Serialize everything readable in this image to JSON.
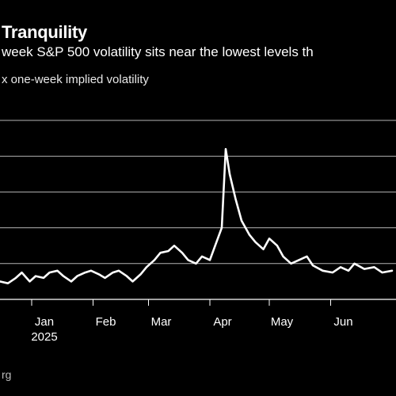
{
  "title": "Tranquility",
  "subtitle": "week S&P 500 volatility sits near the lowest levels th",
  "caption": "x one-week implied volatility",
  "source": "rg",
  "colors": {
    "background": "#000000",
    "line": "#ffffff",
    "grid": "#b4b4b4"
  },
  "chart_data": {
    "type": "line",
    "title": "Tranquility",
    "ylim": [
      10,
      60
    ],
    "grid": true,
    "x_ticks": [
      "Jan",
      "Feb",
      "Mar",
      "Apr",
      "May",
      "Jun"
    ],
    "x_tick_sublabels": [
      "2025",
      "",
      "",
      "",
      "",
      ""
    ],
    "x_range": [
      "2024-12-16",
      "2025-07-04"
    ],
    "series": [
      {
        "x": [
          "2024-12-16",
          "2024-12-20",
          "2024-12-24",
          "2024-12-27",
          "2024-12-31",
          "2025-01-03",
          "2025-01-07",
          "2025-01-10",
          "2025-01-14",
          "2025-01-17",
          "2025-01-21",
          "2025-01-24",
          "2025-01-28",
          "2025-01-31",
          "2025-02-04",
          "2025-02-07",
          "2025-02-11",
          "2025-02-14",
          "2025-02-18",
          "2025-02-21",
          "2025-02-25",
          "2025-02-28",
          "2025-03-04",
          "2025-03-07",
          "2025-03-11",
          "2025-03-14",
          "2025-03-18",
          "2025-03-21",
          "2025-03-25",
          "2025-03-28",
          "2025-04-01",
          "2025-04-03",
          "2025-04-07",
          "2025-04-09",
          "2025-04-11",
          "2025-04-14",
          "2025-04-17",
          "2025-04-21",
          "2025-04-24",
          "2025-04-28",
          "2025-05-01",
          "2025-05-05",
          "2025-05-08",
          "2025-05-12",
          "2025-05-16",
          "2025-05-20",
          "2025-05-23",
          "2025-05-28",
          "2025-06-02",
          "2025-06-06",
          "2025-06-10",
          "2025-06-13",
          "2025-06-18",
          "2025-06-23",
          "2025-06-27",
          "2025-07-02"
        ],
        "y": [
          15,
          14.5,
          16,
          17.5,
          15,
          16.5,
          16,
          17.5,
          18,
          16.5,
          15,
          16.5,
          17.5,
          18,
          17,
          16,
          17.5,
          18,
          16.5,
          15,
          17,
          19,
          21,
          23,
          23.5,
          25,
          23,
          21,
          20,
          22,
          21,
          24,
          30,
          52,
          45,
          38,
          32,
          28,
          26,
          24,
          27,
          25,
          22,
          20,
          21,
          22,
          19.5,
          18,
          17.5,
          19,
          18,
          20,
          18.5,
          19,
          17.5,
          18
        ]
      }
    ]
  }
}
